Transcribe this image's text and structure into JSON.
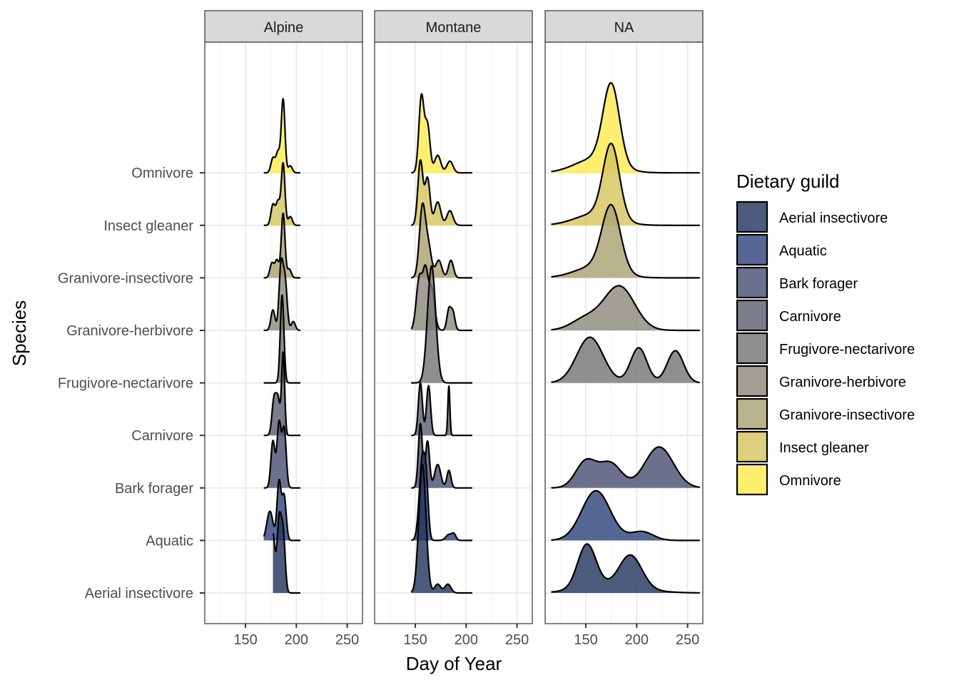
{
  "chart_data": {
    "type": "ridgeline",
    "facets": [
      "Alpine",
      "Montane",
      "NA"
    ],
    "xlabel": "Day of Year",
    "ylabel": "Species",
    "xlim": [
      110,
      265
    ],
    "x_ticks": [
      150,
      200,
      250
    ],
    "categories": [
      "Aerial insectivore",
      "Aquatic",
      "Bark forager",
      "Carnivore",
      "Frugivore-nectarivore",
      "Granivore-herbivore",
      "Granivore-insectivore",
      "Insect gleaner",
      "Omnivore"
    ],
    "legend": {
      "title": "Dietary guild",
      "position": "right",
      "entries": [
        "Aerial insectivore",
        "Aquatic",
        "Bark forager",
        "Carnivore",
        "Frugivore-nectarivore",
        "Granivore-herbivore",
        "Granivore-insectivore",
        "Insect gleaner",
        "Omnivore"
      ]
    },
    "colors": {
      "Aerial insectivore": "#24365f",
      "Aquatic": "#31457f",
      "Bark forager": "#4a5273",
      "Carnivore": "#5e6170",
      "Frugivore-nectarivore": "#76767a",
      "Granivore-herbivore": "#8e8a7d",
      "Granivore-insectivore": "#aba474",
      "Insect gleaner": "#d6c45e",
      "Omnivore": "#ffea4f"
    },
    "grid": true,
    "series": [
      {
        "facet": "Alpine",
        "guild": "Aerial insectivore",
        "range": [
          177,
          204
        ],
        "peaks": [
          [
            177,
            1.0,
            2
          ],
          [
            183,
            1.2,
            2
          ],
          [
            187,
            1.0,
            2
          ]
        ]
      },
      {
        "facet": "Alpine",
        "guild": "Aquatic",
        "range": [
          168,
          204
        ],
        "peaks": [
          [
            174,
            0.5,
            3
          ],
          [
            183,
            1.0,
            2
          ],
          [
            188,
            0.75,
            2
          ]
        ]
      },
      {
        "facet": "Alpine",
        "guild": "Bark forager",
        "range": [
          168,
          204
        ],
        "peaks": [
          [
            177,
            0.8,
            2
          ],
          [
            183,
            1.1,
            2
          ],
          [
            188,
            1.0,
            2
          ]
        ]
      },
      {
        "facet": "Alpine",
        "guild": "Carnivore",
        "range": [
          168,
          204
        ],
        "peaks": [
          [
            178,
            0.6,
            2
          ],
          [
            182,
            0.6,
            2
          ],
          [
            187,
            1.4,
            1.5
          ]
        ]
      },
      {
        "facet": "Alpine",
        "guild": "Frugivore-nectarivore",
        "range": [
          168,
          204
        ],
        "peaks": [
          [
            186,
            1.5,
            1.8
          ]
        ]
      },
      {
        "facet": "Alpine",
        "guild": "Granivore-herbivore",
        "range": [
          168,
          204
        ],
        "peaks": [
          [
            177,
            0.35,
            2
          ],
          [
            185,
            1.1,
            2
          ],
          [
            189,
            0.8,
            2
          ],
          [
            197,
            0.15,
            2
          ]
        ]
      },
      {
        "facet": "Alpine",
        "guild": "Granivore-insectivore",
        "range": [
          168,
          204
        ],
        "peaks": [
          [
            176,
            0.25,
            2
          ],
          [
            181,
            0.3,
            2
          ],
          [
            187,
            1.1,
            1.8
          ],
          [
            193,
            0.15,
            2
          ]
        ]
      },
      {
        "facet": "Alpine",
        "guild": "Insect gleaner",
        "range": [
          168,
          204
        ],
        "peaks": [
          [
            177,
            0.35,
            2
          ],
          [
            182,
            0.4,
            2
          ],
          [
            187,
            1.05,
            1.8
          ],
          [
            194,
            0.15,
            2
          ]
        ]
      },
      {
        "facet": "Alpine",
        "guild": "Omnivore",
        "range": [
          168,
          204
        ],
        "peaks": [
          [
            177,
            0.25,
            2
          ],
          [
            182,
            0.35,
            2
          ],
          [
            187,
            1.25,
            1.8
          ],
          [
            194,
            0.12,
            2
          ]
        ]
      },
      {
        "facet": "Montane",
        "guild": "Aerial insectivore",
        "range": [
          146,
          206
        ],
        "peaks": [
          [
            157,
            2.2,
            3.5
          ],
          [
            172,
            0.15,
            3
          ],
          [
            182,
            0.15,
            3
          ]
        ]
      },
      {
        "facet": "Montane",
        "guild": "Aquatic",
        "range": [
          146,
          206
        ],
        "peaks": [
          [
            157,
            1.4,
            3
          ],
          [
            161,
            0.6,
            2
          ],
          [
            183,
            0.1,
            3
          ],
          [
            188,
            0.1,
            2
          ]
        ]
      },
      {
        "facet": "Montane",
        "guild": "Bark forager",
        "range": [
          146,
          206
        ],
        "peaks": [
          [
            155,
            1.1,
            2
          ],
          [
            162,
            0.8,
            2
          ],
          [
            172,
            0.4,
            3
          ],
          [
            183,
            0.3,
            2
          ]
        ]
      },
      {
        "facet": "Montane",
        "guild": "Carnivore",
        "range": [
          146,
          206
        ],
        "peaks": [
          [
            155,
            0.9,
            2
          ],
          [
            163,
            0.85,
            2
          ],
          [
            183,
            0.85,
            1
          ]
        ]
      },
      {
        "facet": "Montane",
        "guild": "Frugivore-nectarivore",
        "range": [
          146,
          206
        ],
        "peaks": [
          [
            166,
            2.0,
            4
          ]
        ]
      },
      {
        "facet": "Montane",
        "guild": "Granivore-herbivore",
        "range": [
          146,
          206
        ],
        "peaks": [
          [
            154,
            0.9,
            3
          ],
          [
            160,
            0.9,
            2.5
          ],
          [
            166,
            0.7,
            3
          ],
          [
            183,
            0.35,
            2
          ],
          [
            187,
            0.3,
            2
          ]
        ]
      },
      {
        "facet": "Montane",
        "guild": "Granivore-insectivore",
        "range": [
          146,
          206
        ],
        "peaks": [
          [
            157,
            1.2,
            3
          ],
          [
            163,
            0.5,
            3
          ],
          [
            173,
            0.3,
            3
          ],
          [
            185,
            0.3,
            2.5
          ]
        ]
      },
      {
        "facet": "Montane",
        "guild": "Insect gleaner",
        "range": [
          146,
          206
        ],
        "peaks": [
          [
            155,
            1.1,
            2.5
          ],
          [
            162,
            0.8,
            2.5
          ],
          [
            172,
            0.4,
            3
          ],
          [
            184,
            0.25,
            3
          ]
        ]
      },
      {
        "facet": "Montane",
        "guild": "Omnivore",
        "range": [
          146,
          206
        ],
        "peaks": [
          [
            156,
            1.3,
            2.5
          ],
          [
            162,
            0.8,
            2.5
          ],
          [
            172,
            0.3,
            3
          ],
          [
            184,
            0.2,
            3
          ]
        ]
      },
      {
        "facet": "NA",
        "guild": "Aerial insectivore",
        "range": [
          116,
          262
        ],
        "peaks": [
          [
            151,
            0.75,
            9
          ],
          [
            194,
            0.55,
            11
          ],
          [
            175,
            0.12,
            30
          ]
        ]
      },
      {
        "facet": "NA",
        "guild": "Aquatic",
        "range": [
          116,
          262
        ],
        "peaks": [
          [
            160,
            0.85,
            14
          ],
          [
            205,
            0.15,
            11
          ]
        ]
      },
      {
        "facet": "NA",
        "guild": "Bark forager",
        "range": [
          116,
          262
        ],
        "peaks": [
          [
            150,
            0.45,
            10
          ],
          [
            174,
            0.42,
            11
          ],
          [
            222,
            0.7,
            14
          ]
        ]
      },
      {
        "facet": "NA",
        "guild": "Frugivore-nectarivore",
        "range": [
          116,
          262
        ],
        "peaks": [
          [
            154,
            0.78,
            13
          ],
          [
            202,
            0.6,
            8
          ],
          [
            238,
            0.55,
            8
          ]
        ]
      },
      {
        "facet": "NA",
        "guild": "Granivore-herbivore",
        "range": [
          116,
          262
        ],
        "peaks": [
          [
            183,
            0.75,
            15
          ],
          [
            150,
            0.2,
            14
          ]
        ]
      },
      {
        "facet": "NA",
        "guild": "Granivore-insectivore",
        "range": [
          116,
          262
        ],
        "peaks": [
          [
            175,
            1.1,
            9
          ],
          [
            160,
            0.2,
            20
          ]
        ]
      },
      {
        "facet": "NA",
        "guild": "Insect gleaner",
        "range": [
          116,
          262
        ],
        "peaks": [
          [
            175,
            1.25,
            8
          ],
          [
            160,
            0.2,
            20
          ]
        ]
      },
      {
        "facet": "NA",
        "guild": "Omnivore",
        "range": [
          116,
          262
        ],
        "peaks": [
          [
            175,
            1.35,
            8
          ],
          [
            160,
            0.25,
            20
          ]
        ]
      }
    ]
  }
}
